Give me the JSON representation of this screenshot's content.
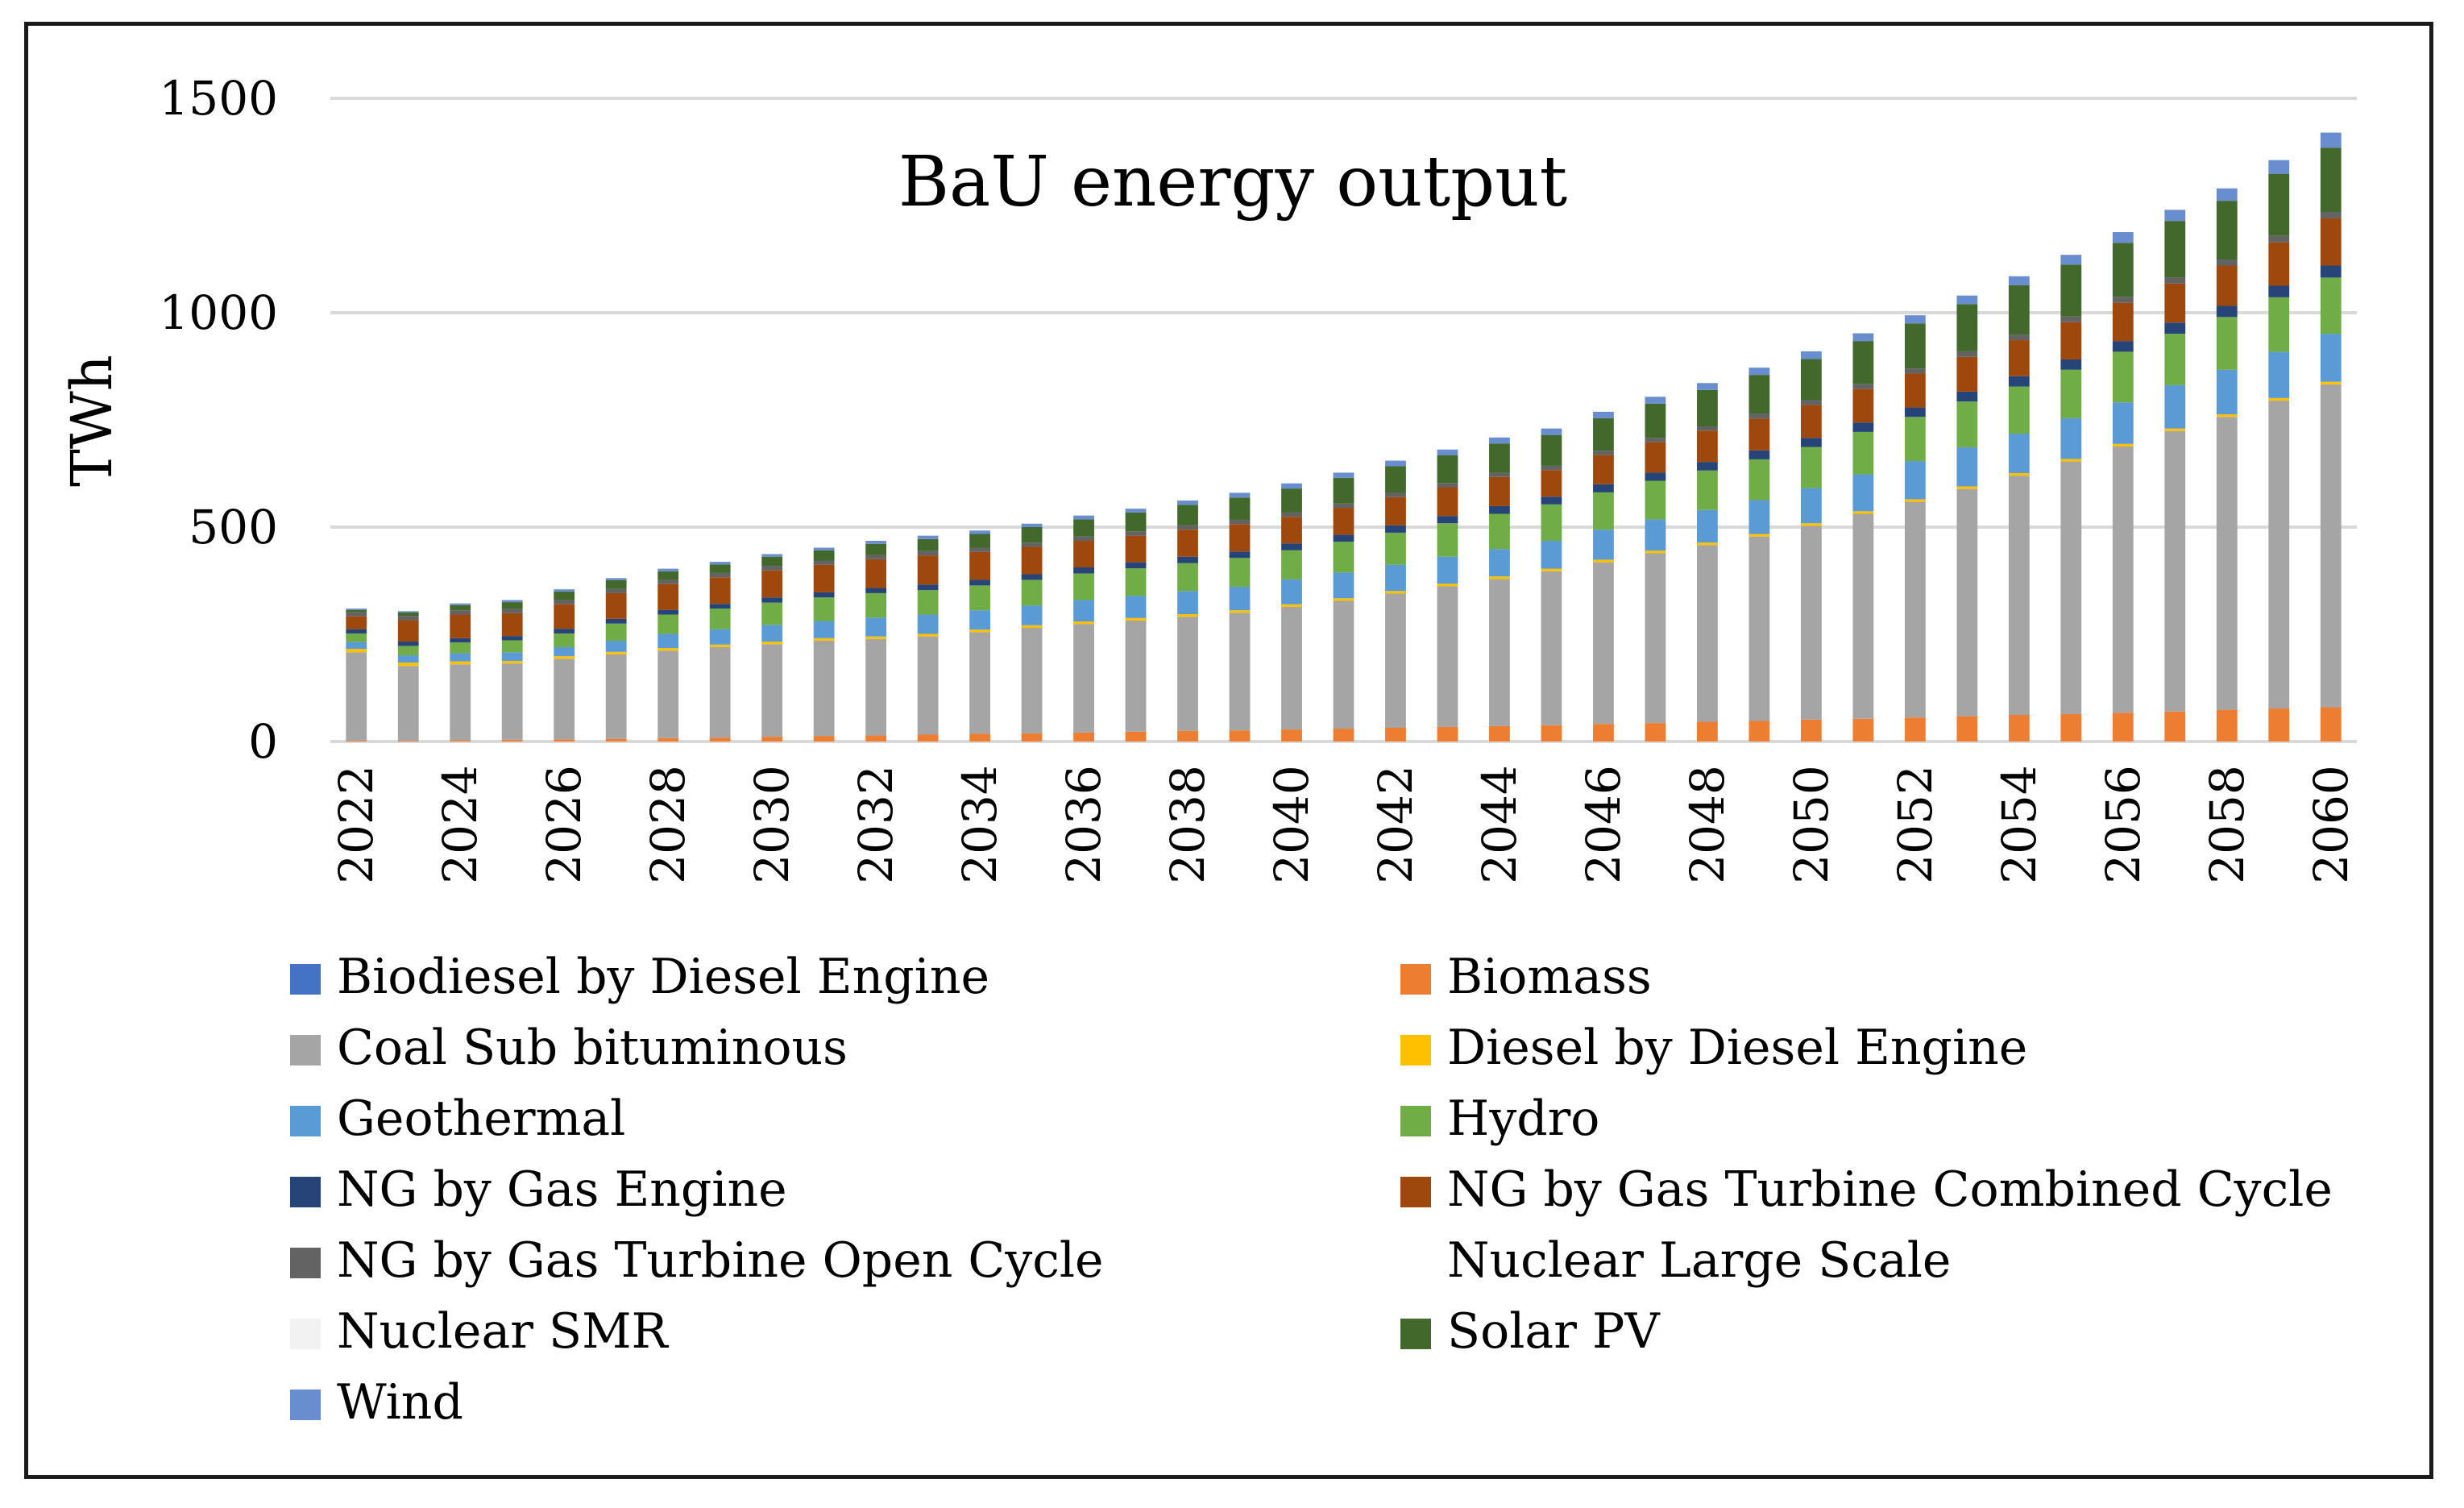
{
  "chart_data": {
    "type": "stacked-bar",
    "title": "BaU energy output",
    "ylabel": "TWh",
    "xlabel": "",
    "ylim": [
      0,
      1500
    ],
    "yticks": [
      0,
      500,
      1000,
      1500
    ],
    "grid": true,
    "legend_position": "bottom",
    "x": [
      2022,
      2023,
      2024,
      2025,
      2026,
      2027,
      2028,
      2029,
      2030,
      2031,
      2032,
      2033,
      2034,
      2035,
      2036,
      2037,
      2038,
      2039,
      2040,
      2041,
      2042,
      2043,
      2044,
      2045,
      2046,
      2047,
      2048,
      2049,
      2050,
      2051,
      2052,
      2053,
      2054,
      2055,
      2056,
      2057,
      2058,
      2059,
      2060
    ],
    "x_tick_labels": [
      "2022",
      "2024",
      "2026",
      "2028",
      "2030",
      "2032",
      "2034",
      "2036",
      "2038",
      "2040",
      "2042",
      "2044",
      "2046",
      "2048",
      "2050",
      "2052",
      "2054",
      "2056",
      "2058",
      "2060"
    ],
    "series": [
      {
        "name": "Biomass",
        "color": "#ED7D31",
        "values": [
          2,
          2,
          3,
          4,
          5,
          6,
          8,
          9,
          11,
          13,
          14,
          16,
          18,
          19,
          21,
          23,
          25,
          26,
          28,
          30,
          32,
          34,
          36,
          38,
          41,
          43,
          46,
          48,
          51,
          53,
          56,
          59,
          62,
          64,
          67,
          70,
          74,
          77,
          80
        ]
      },
      {
        "name": "Biodiesel by Diesel Engine",
        "color": "#4472C4",
        "values": [
          0,
          0,
          0,
          0,
          0,
          0,
          0,
          0,
          0,
          0,
          0,
          0,
          0,
          0,
          0,
          0,
          0,
          0,
          0,
          0,
          0,
          0,
          0,
          0,
          0,
          0,
          0,
          0,
          0,
          0,
          0,
          0,
          0,
          0,
          0,
          0,
          0,
          0,
          0
        ]
      },
      {
        "name": "Coal Sub bituminous",
        "color": "#A5A5A5",
        "values": [
          206,
          174,
          177,
          178,
          188,
          197,
          204,
          211,
          216,
          222,
          225,
          229,
          237,
          246,
          253,
          259,
          266,
          274,
          286,
          298,
          313,
          328,
          343,
          359,
          377,
          396,
          412,
          430,
          452,
          478,
          503,
          530,
          558,
          589,
          621,
          654,
          683,
          718,
          753
        ]
      },
      {
        "name": "Diesel by Diesel Engine",
        "color": "#FFC000",
        "values": [
          8,
          8,
          7,
          6,
          6,
          6,
          6,
          6,
          6,
          6,
          6,
          6,
          6,
          6,
          6,
          6,
          6,
          6,
          6,
          6,
          6,
          6,
          6,
          6,
          6,
          6,
          6,
          6,
          6,
          6,
          6,
          6,
          6,
          6,
          6,
          6,
          6,
          6,
          6
        ]
      },
      {
        "name": "Geothermal",
        "color": "#5B9BD5",
        "values": [
          16,
          17,
          19,
          20,
          21,
          26,
          33,
          36,
          39,
          40,
          44,
          45,
          45,
          46,
          50,
          52,
          54,
          55,
          58,
          60,
          61,
          63,
          64,
          65,
          70,
          73,
          76,
          79,
          82,
          86,
          89,
          91,
          92,
          95,
          97,
          101,
          104,
          108,
          112
        ]
      },
      {
        "name": "Hydro",
        "color": "#70AD47",
        "values": [
          20,
          22,
          25,
          28,
          32,
          40,
          45,
          48,
          52,
          55,
          57,
          57,
          58,
          60,
          62,
          64,
          65,
          67,
          68,
          72,
          75,
          78,
          82,
          85,
          87,
          90,
          92,
          95,
          96,
          99,
          103,
          107,
          110,
          113,
          118,
          120,
          123,
          127,
          131
        ]
      },
      {
        "name": "NG by Gas Engine",
        "color": "#264478",
        "values": [
          10,
          10,
          10,
          10,
          11,
          11,
          11,
          11,
          12,
          12,
          12,
          13,
          13,
          13,
          14,
          14,
          15,
          15,
          16,
          16,
          17,
          17,
          18,
          18,
          19,
          19,
          20,
          21,
          21,
          22,
          22,
          23,
          24,
          24,
          25,
          26,
          26,
          27,
          28
        ]
      },
      {
        "name": "NG by Gas Turbine Combined Cycle",
        "color": "#9E480E",
        "values": [
          30,
          50,
          55,
          53,
          57,
          60,
          60,
          62,
          63,
          64,
          67,
          68,
          65,
          64,
          62,
          62,
          63,
          64,
          62,
          63,
          66,
          67,
          68,
          62,
          68,
          71,
          73,
          74,
          77,
          78,
          79,
          81,
          84,
          87,
          89,
          91,
          94,
          101,
          110
        ]
      },
      {
        "name": "NG by Gas Turbine Open Cycle",
        "color": "#636363",
        "values": [
          10,
          10,
          10,
          10,
          10,
          10,
          10,
          10,
          10,
          10,
          10,
          10,
          10,
          10,
          10,
          10,
          10,
          10,
          10,
          10,
          10,
          10,
          10,
          10,
          10,
          10,
          10,
          12,
          12,
          12,
          12,
          13,
          13,
          13,
          14,
          14,
          14,
          15,
          15
        ]
      },
      {
        "name": "Nuclear Large Scale",
        "color": "#FFFFFF",
        "values": [
          0,
          0,
          0,
          0,
          0,
          0,
          0,
          0,
          0,
          0,
          0,
          0,
          0,
          0,
          0,
          0,
          0,
          0,
          0,
          0,
          0,
          0,
          0,
          0,
          0,
          0,
          0,
          0,
          0,
          0,
          0,
          0,
          0,
          0,
          0,
          0,
          0,
          0,
          0
        ]
      },
      {
        "name": "Nuclear SMR",
        "color": "#F2F2F2",
        "values": [
          0,
          0,
          0,
          0,
          0,
          0,
          0,
          0,
          0,
          0,
          0,
          0,
          0,
          0,
          0,
          0,
          0,
          0,
          0,
          0,
          0,
          0,
          0,
          0,
          0,
          0,
          0,
          0,
          0,
          0,
          0,
          0,
          0,
          0,
          0,
          0,
          0,
          0,
          0
        ]
      },
      {
        "name": "Solar PV",
        "color": "#43682B",
        "values": [
          5,
          8,
          12,
          16,
          20,
          20,
          20,
          20,
          22,
          24,
          26,
          28,
          32,
          36,
          40,
          44,
          48,
          52,
          56,
          60,
          62,
          65,
          68,
          72,
          76,
          80,
          85,
          90,
          95,
          100,
          105,
          110,
          115,
          121,
          126,
          132,
          137,
          145,
          150
        ]
      },
      {
        "name": "Wind",
        "color": "#698ED0",
        "values": [
          3,
          3,
          4,
          5,
          5,
          5,
          6,
          6,
          6,
          6,
          7,
          8,
          8,
          8,
          9,
          9,
          10,
          11,
          12,
          12,
          13,
          13,
          14,
          15,
          15,
          16,
          16,
          17,
          18,
          18,
          19,
          20,
          21,
          23,
          25,
          26,
          29,
          32,
          35
        ]
      }
    ]
  },
  "legend": [
    "Biodiesel by Diesel Engine",
    "Biomass",
    "Coal Sub bituminous",
    "Diesel by Diesel Engine",
    "Geothermal",
    "Hydro",
    "NG by Gas Engine",
    "NG by Gas Turbine Combined Cycle",
    "NG by Gas Turbine Open Cycle",
    "Nuclear Large Scale",
    "Nuclear SMR",
    "Solar PV",
    "Wind"
  ]
}
